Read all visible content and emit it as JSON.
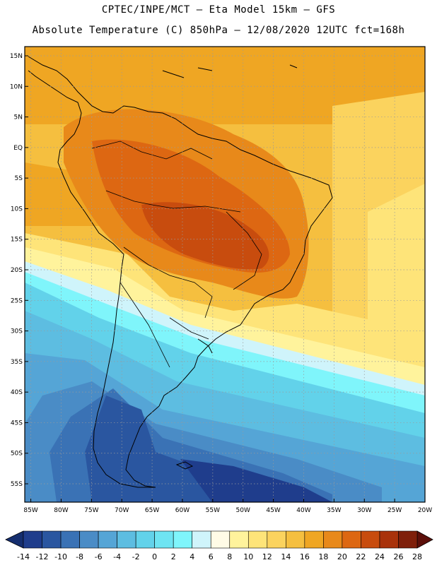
{
  "header": {
    "title_line1": "CPTEC/INPE/MCT –  Eta Model 15km – GFS",
    "title_line2": "Absolute Temperature (C) 850hPa – 12/08/2020 12UTC fct=168h"
  },
  "map": {
    "lat_labels": [
      "15N",
      "10N",
      "5N",
      "EQ",
      "5S",
      "10S",
      "15S",
      "20S",
      "25S",
      "30S",
      "35S",
      "40S",
      "45S",
      "50S",
      "55S"
    ],
    "lat_values": [
      15,
      10,
      5,
      0,
      -5,
      -10,
      -15,
      -20,
      -25,
      -30,
      -35,
      -40,
      -45,
      -50,
      -55
    ],
    "lon_labels": [
      "85W",
      "80W",
      "75W",
      "70W",
      "65W",
      "60W",
      "55W",
      "50W",
      "45W",
      "40W",
      "35W",
      "30W",
      "25W",
      "20W"
    ],
    "lon_values": [
      -85,
      -80,
      -75,
      -70,
      -65,
      -60,
      -55,
      -50,
      -45,
      -40,
      -35,
      -30,
      -25,
      -20
    ],
    "lat_range": [
      -58,
      16.5
    ],
    "lon_range": [
      -86,
      -20
    ]
  },
  "colorbar": {
    "labels": [
      "-14",
      "-12",
      "-10",
      "-8",
      "-6",
      "-4",
      "-2",
      "0",
      "2",
      "4",
      "6",
      "8",
      "10",
      "12",
      "14",
      "16",
      "18",
      "20",
      "22",
      "24",
      "26",
      "28"
    ],
    "colors": [
      "#1f3d8c",
      "#2a56a0",
      "#3a72b5",
      "#4a8cc6",
      "#55a5d6",
      "#5dbde1",
      "#62d2ea",
      "#6ee4f2",
      "#7ff5fb",
      "#cff4fb",
      "#fffbe6",
      "#fff39c",
      "#fee479",
      "#fbd35e",
      "#f5bf3f",
      "#efa623",
      "#e8891a",
      "#dd6712",
      "#c84c0e",
      "#a9320b",
      "#7f1f0a"
    ],
    "arrow_low_color": "#152e6f",
    "arrow_high_color": "#5c0f0a"
  }
}
